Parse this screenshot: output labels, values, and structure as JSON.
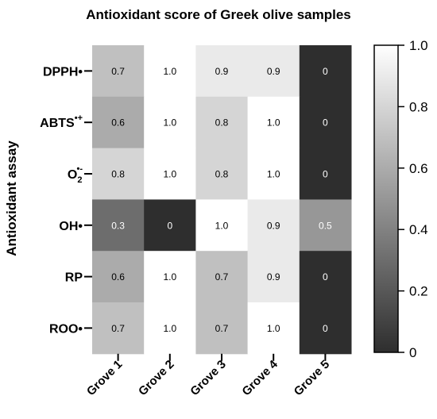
{
  "chart_data": {
    "type": "heatmap",
    "title": "Antioxidant score of Greek olive samples",
    "ylabel": "Antioxidant assay",
    "xlabel": "",
    "columns": [
      "Grove 1",
      "Grove 2",
      "Grove 3",
      "Grove 4",
      "Grove 5"
    ],
    "rows": [
      {
        "base": "DPPH•",
        "sup": ""
      },
      {
        "base": "ABTS",
        "sup": "•+"
      },
      {
        "base": "O",
        "sub": "2",
        "sup": "•-"
      },
      {
        "base": "OH•",
        "sup": ""
      },
      {
        "base": "RP",
        "sup": ""
      },
      {
        "base": "ROO•",
        "sup": ""
      }
    ],
    "values": [
      [
        0.7,
        1.0,
        0.9,
        0.9,
        0
      ],
      [
        0.6,
        1.0,
        0.8,
        1.0,
        0
      ],
      [
        0.8,
        1.0,
        0.8,
        1.0,
        0
      ],
      [
        0.3,
        0,
        1.0,
        0.9,
        0.5
      ],
      [
        0.6,
        1.0,
        0.7,
        0.9,
        0
      ],
      [
        0.7,
        1.0,
        0.7,
        1.0,
        0
      ]
    ],
    "value_labels": [
      [
        "0.7",
        "1.0",
        "0.9",
        "0.9",
        "0"
      ],
      [
        "0.6",
        "1.0",
        "0.8",
        "1.0",
        "0"
      ],
      [
        "0.8",
        "1.0",
        "0.8",
        "1.0",
        "0"
      ],
      [
        "0.3",
        "0",
        "1.0",
        "0.9",
        "0.5"
      ],
      [
        "0.6",
        "1.0",
        "0.7",
        "0.9",
        "0"
      ],
      [
        "0.7",
        "1.0",
        "0.7",
        "1.0",
        "0"
      ]
    ],
    "colorbar": {
      "range": [
        0,
        1.0
      ],
      "ticks": [
        "0",
        "0.2",
        "0.4",
        "0.6",
        "0.8",
        "1.0"
      ],
      "low_color": "#2e2e2e",
      "high_color": "#ffffff"
    },
    "grid": false
  }
}
